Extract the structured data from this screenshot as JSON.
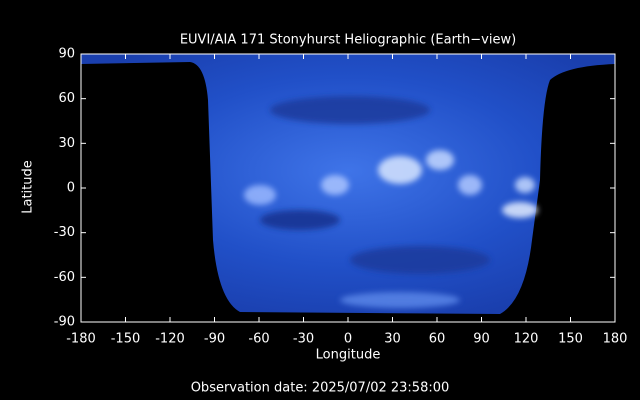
{
  "chart_data": {
    "type": "image",
    "title": "EUVI/AIA 171 Stonyhurst Heliographic (Earth−view)",
    "xlabel": "Longitude",
    "ylabel": "Latitude",
    "xlim": [
      -180,
      180
    ],
    "ylim": [
      -90,
      90
    ],
    "xticks": [
      -180,
      -150,
      -120,
      -90,
      -60,
      -30,
      0,
      30,
      60,
      90,
      120,
      150,
      180
    ],
    "yticks": [
      -90,
      -60,
      -30,
      0,
      30,
      60,
      90
    ],
    "annotation": "Observation date: 2025/07/02 23:58:00"
  }
}
